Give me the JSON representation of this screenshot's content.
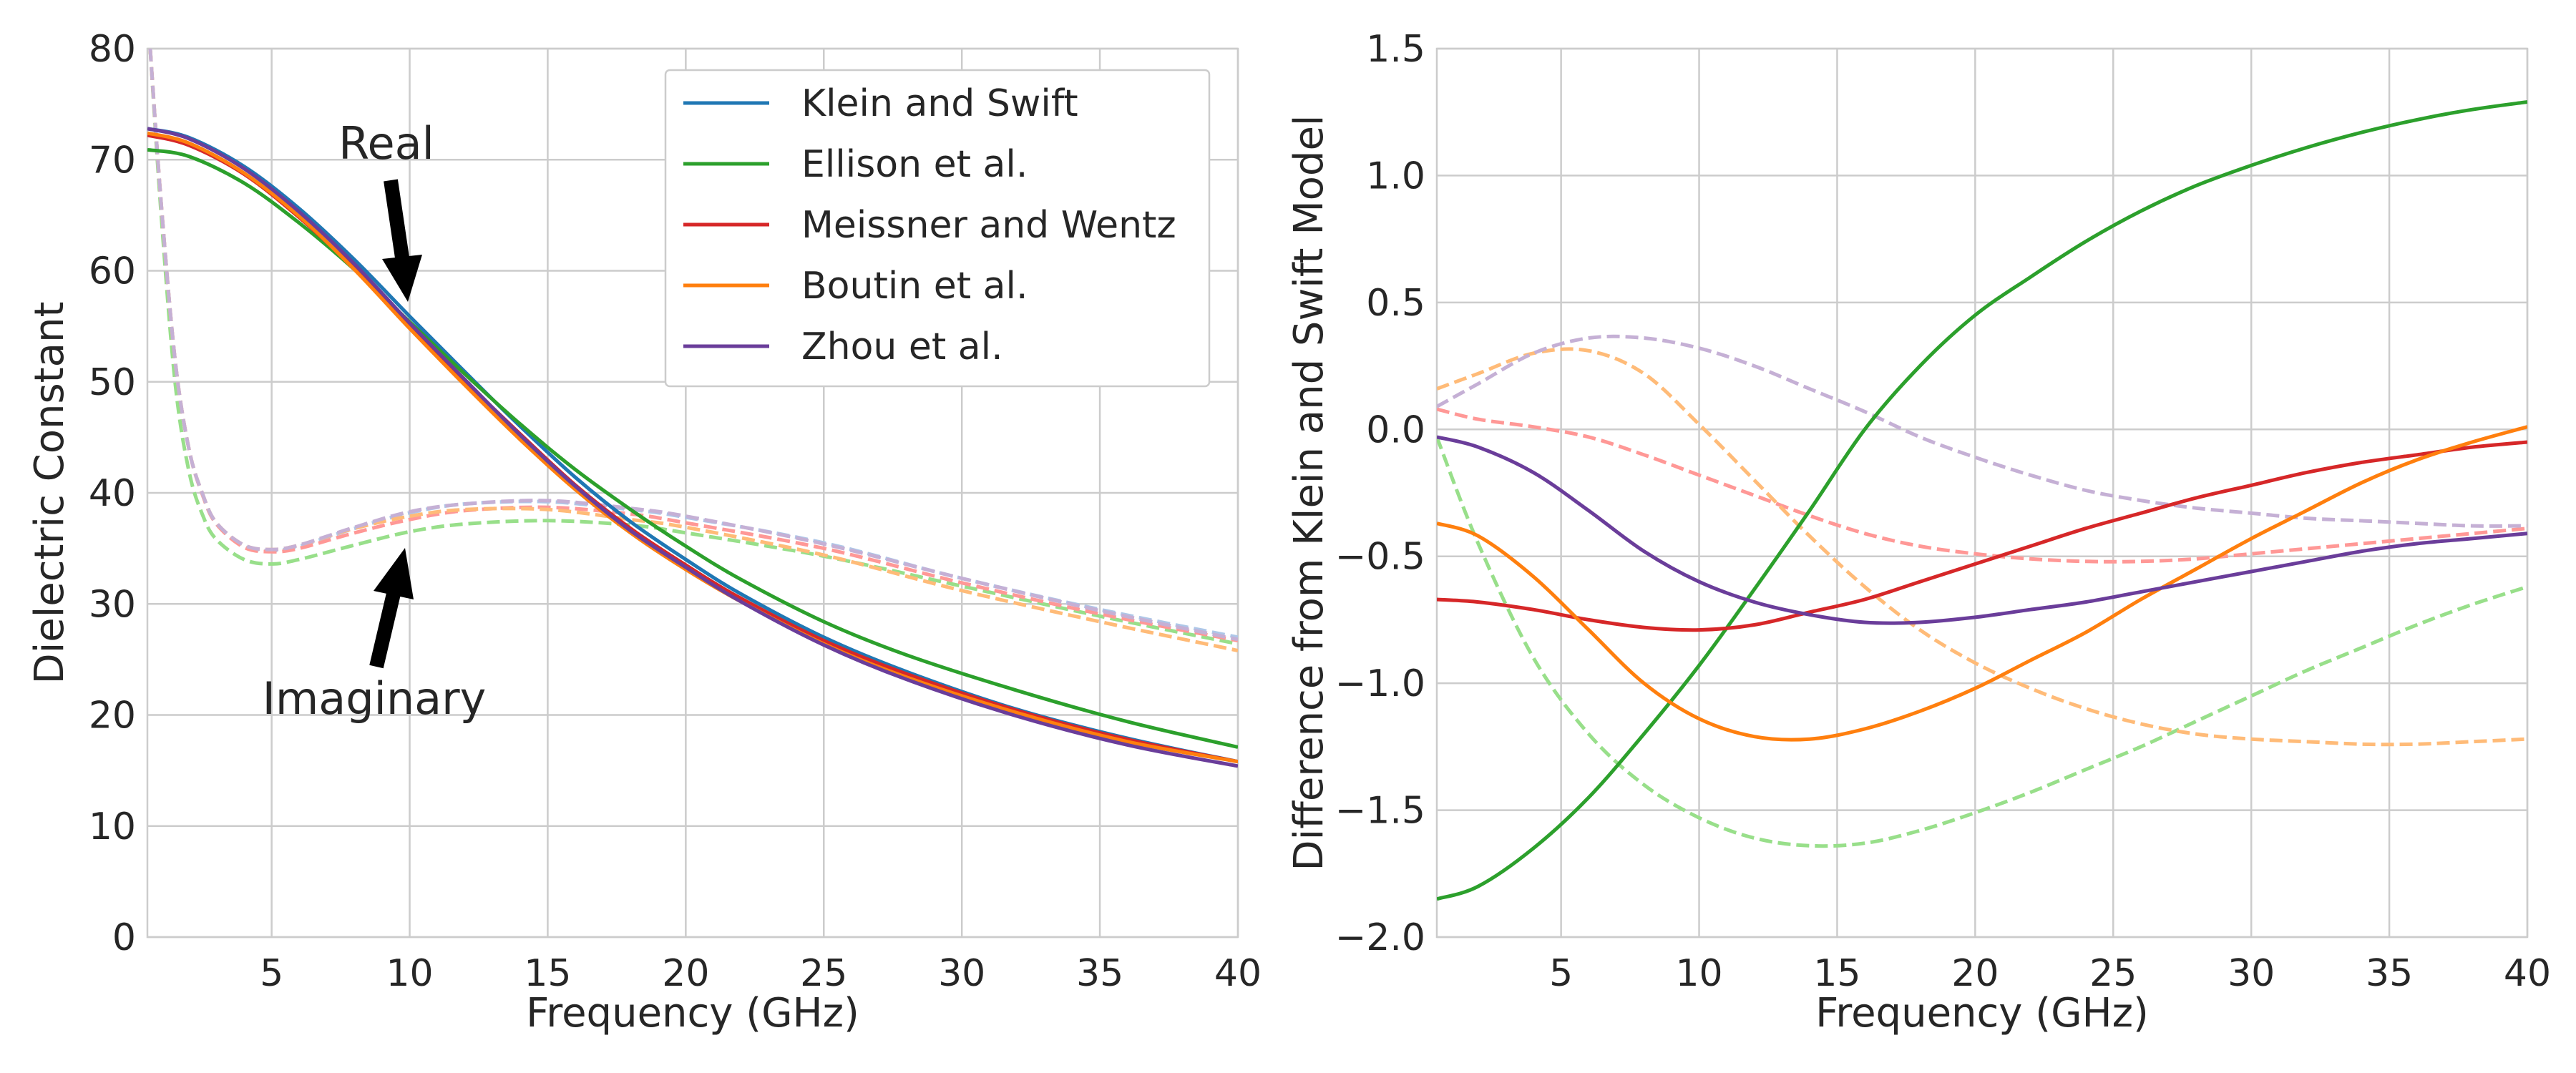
{
  "chart_data": [
    {
      "type": "line",
      "title": "",
      "xlabel": "Frequency (GHz)",
      "ylabel": "Dielectric Constant",
      "xlim": [
        0.5,
        40
      ],
      "ylim": [
        0,
        80
      ],
      "xticks": [
        5,
        10,
        15,
        20,
        25,
        30,
        35,
        40
      ],
      "yticks": [
        0,
        10,
        20,
        30,
        40,
        50,
        60,
        70,
        80
      ],
      "grid": true,
      "legend_position": "top-right",
      "legend": [
        {
          "label": "Klein and Swift",
          "color": "#1f77b4"
        },
        {
          "label": "Ellison et al.",
          "color": "#2ca02c"
        },
        {
          "label": "Meissner and Wentz",
          "color": "#d62728"
        },
        {
          "label": "Boutin et al.",
          "color": "#ff7f0e"
        },
        {
          "label": "Zhou et al.",
          "color": "#6a3d9a"
        }
      ],
      "annotations": [
        {
          "text": "Real",
          "points_to": [
            10,
            57
          ]
        },
        {
          "text": "Imaginary",
          "points_to": [
            10,
            35
          ]
        }
      ],
      "series": [
        {
          "name": "Klein and Swift",
          "component": "real",
          "style": "solid",
          "color": "#1f77b4",
          "x": [
            0.5,
            2,
            4,
            6,
            8,
            10,
            12,
            14,
            16,
            18,
            20,
            22,
            25,
            28,
            32,
            36,
            40
          ],
          "y": [
            72.8,
            72.0,
            69.4,
            65.6,
            61.0,
            55.9,
            50.9,
            46.0,
            41.4,
            37.4,
            34.0,
            30.9,
            27.0,
            23.9,
            20.5,
            17.9,
            15.8
          ]
        },
        {
          "name": "Ellison et al.",
          "component": "real",
          "style": "solid",
          "color": "#2ca02c",
          "x": [
            0.5,
            2,
            4,
            6,
            8,
            10,
            12,
            14,
            16,
            18,
            20,
            22,
            25,
            28,
            32,
            36,
            40
          ],
          "y": [
            70.9,
            70.3,
            67.9,
            64.3,
            60.1,
            55.4,
            50.7,
            46.2,
            42.1,
            38.5,
            35.2,
            32.2,
            28.4,
            25.4,
            22.2,
            19.4,
            17.1
          ]
        },
        {
          "name": "Meissner and Wentz",
          "component": "real",
          "style": "solid",
          "color": "#d62728",
          "x": [
            0.5,
            2,
            4,
            6,
            8,
            10,
            12,
            14,
            16,
            18,
            20,
            22,
            25,
            28,
            32,
            36,
            40
          ],
          "y": [
            72.2,
            71.3,
            68.7,
            64.8,
            60.2,
            55.1,
            50.1,
            45.3,
            40.7,
            36.8,
            33.5,
            30.5,
            26.7,
            23.7,
            20.4,
            17.8,
            15.8
          ]
        },
        {
          "name": "Boutin et al.",
          "component": "real",
          "style": "solid",
          "color": "#ff7f0e",
          "x": [
            0.5,
            2,
            4,
            6,
            8,
            10,
            12,
            14,
            16,
            18,
            20,
            22,
            25,
            28,
            32,
            36,
            40
          ],
          "y": [
            72.4,
            71.5,
            68.8,
            64.9,
            60.1,
            54.8,
            49.7,
            44.8,
            40.3,
            36.4,
            33.1,
            30.2,
            26.4,
            23.4,
            20.2,
            17.6,
            15.8
          ]
        },
        {
          "name": "Zhou et al.",
          "component": "real",
          "style": "solid",
          "color": "#6a3d9a",
          "x": [
            0.5,
            2,
            4,
            6,
            8,
            10,
            12,
            14,
            16,
            18,
            20,
            22,
            25,
            28,
            32,
            36,
            40
          ],
          "y": [
            72.8,
            71.9,
            69.2,
            65.3,
            60.6,
            55.3,
            50.2,
            45.2,
            40.6,
            36.6,
            33.3,
            30.2,
            26.3,
            23.2,
            19.9,
            17.3,
            15.4
          ]
        },
        {
          "name": "Klein and Swift",
          "component": "imaginary",
          "style": "dashed",
          "color": "#aec7e8",
          "x": [
            0.6,
            1,
            1.5,
            2,
            2.5,
            3,
            4,
            5,
            6,
            8,
            10,
            12,
            15,
            18,
            20,
            25,
            30,
            35,
            40
          ],
          "y": [
            80,
            66,
            52,
            44,
            39.8,
            37.2,
            35.2,
            34.8,
            35.2,
            36.8,
            38.2,
            39.0,
            39.2,
            38.5,
            37.8,
            35.5,
            32.3,
            29.5,
            27.0
          ]
        },
        {
          "name": "Ellison et al.",
          "component": "imaginary",
          "style": "dashed",
          "color": "#98df8a",
          "x": [
            0.6,
            1,
            1.5,
            2,
            2.5,
            3,
            4,
            5,
            6,
            8,
            10,
            12,
            15,
            18,
            20,
            25,
            30,
            35,
            40
          ],
          "y": [
            80,
            65,
            50,
            42,
            38.0,
            35.8,
            34.0,
            33.6,
            34.0,
            35.3,
            36.5,
            37.2,
            37.5,
            37.1,
            36.4,
            34.3,
            31.6,
            28.9,
            26.4
          ]
        },
        {
          "name": "Meissner and Wentz",
          "component": "imaginary",
          "style": "dashed",
          "color": "#ff9896",
          "x": [
            0.6,
            1,
            1.5,
            2,
            2.5,
            3,
            4,
            5,
            6,
            8,
            10,
            12,
            15,
            18,
            20,
            25,
            30,
            35,
            40
          ],
          "y": [
            80,
            66,
            52,
            44,
            39.8,
            37.2,
            35.1,
            34.7,
            35.0,
            36.4,
            37.6,
            38.4,
            38.7,
            38.1,
            37.3,
            35.0,
            31.9,
            29.1,
            26.7
          ]
        },
        {
          "name": "Boutin et al.",
          "component": "imaginary",
          "style": "dashed",
          "color": "#ffbb78",
          "x": [
            0.6,
            1,
            1.5,
            2,
            2.5,
            3,
            4,
            5,
            6,
            8,
            10,
            12,
            15,
            18,
            20,
            25,
            30,
            35,
            40
          ],
          "y": [
            80,
            66,
            52,
            44,
            39.9,
            37.3,
            35.3,
            34.9,
            35.3,
            36.8,
            37.9,
            38.5,
            38.5,
            37.6,
            36.9,
            34.4,
            31.2,
            28.4,
            25.8
          ]
        },
        {
          "name": "Zhou et al.",
          "component": "imaginary",
          "style": "dashed",
          "color": "#c5b0d5",
          "x": [
            0.6,
            1,
            1.5,
            2,
            2.5,
            3,
            4,
            5,
            6,
            8,
            10,
            12,
            15,
            18,
            20,
            25,
            30,
            35,
            40
          ],
          "y": [
            80,
            66,
            52,
            44,
            39.9,
            37.3,
            35.3,
            34.9,
            35.3,
            36.9,
            38.3,
            39.0,
            39.3,
            38.6,
            37.9,
            35.4,
            32.3,
            29.4,
            26.8
          ]
        }
      ]
    },
    {
      "type": "line",
      "title": "",
      "xlabel": "Frequency (GHz)",
      "ylabel": "Difference from Klein and Swift Model",
      "xlim": [
        0.5,
        40
      ],
      "ylim": [
        -2.0,
        1.5
      ],
      "xticks": [
        5,
        10,
        15,
        20,
        25,
        30,
        35,
        40
      ],
      "yticks": [
        -2.0,
        -1.5,
        -1.0,
        -0.5,
        0.0,
        0.5,
        1.0,
        1.5
      ],
      "ytick_labels": [
        "−2.0",
        "−1.5",
        "−1.0",
        "−0.5",
        "0.0",
        "0.5",
        "1.0",
        "1.5"
      ],
      "grid": true,
      "series": [
        {
          "name": "Ellison et al.",
          "component": "real",
          "style": "solid",
          "color": "#2ca02c",
          "x": [
            0.5,
            2,
            4,
            6,
            8,
            10,
            12,
            14,
            16,
            18,
            20,
            22,
            24,
            26,
            28,
            30,
            32,
            34,
            36,
            38,
            40
          ],
          "y": [
            -1.85,
            -1.8,
            -1.65,
            -1.45,
            -1.2,
            -0.93,
            -0.63,
            -0.32,
            0.0,
            0.25,
            0.45,
            0.6,
            0.74,
            0.86,
            0.96,
            1.04,
            1.11,
            1.17,
            1.22,
            1.26,
            1.29
          ]
        },
        {
          "name": "Meissner and Wentz",
          "component": "real",
          "style": "solid",
          "color": "#d62728",
          "x": [
            0.5,
            2,
            4,
            6,
            8,
            10,
            12,
            14,
            16,
            18,
            20,
            22,
            24,
            26,
            28,
            30,
            32,
            34,
            36,
            38,
            40
          ],
          "y": [
            -0.67,
            -0.68,
            -0.71,
            -0.75,
            -0.78,
            -0.79,
            -0.77,
            -0.72,
            -0.67,
            -0.6,
            -0.53,
            -0.46,
            -0.39,
            -0.33,
            -0.27,
            -0.22,
            -0.17,
            -0.13,
            -0.1,
            -0.07,
            -0.05
          ]
        },
        {
          "name": "Boutin et al.",
          "component": "real",
          "style": "solid",
          "color": "#ff7f0e",
          "x": [
            0.5,
            2,
            4,
            6,
            8,
            10,
            12,
            14,
            16,
            18,
            20,
            22,
            24,
            26,
            28,
            30,
            32,
            34,
            36,
            38,
            40
          ],
          "y": [
            -0.37,
            -0.42,
            -0.58,
            -0.79,
            -1.0,
            -1.14,
            -1.21,
            -1.22,
            -1.18,
            -1.11,
            -1.02,
            -0.91,
            -0.8,
            -0.67,
            -0.55,
            -0.43,
            -0.32,
            -0.21,
            -0.12,
            -0.05,
            0.01
          ]
        },
        {
          "name": "Zhou et al.",
          "component": "real",
          "style": "solid",
          "color": "#6a3d9a",
          "x": [
            0.5,
            2,
            4,
            6,
            8,
            10,
            12,
            14,
            16,
            18,
            20,
            22,
            24,
            26,
            28,
            30,
            32,
            34,
            36,
            38,
            40
          ],
          "y": [
            -0.03,
            -0.07,
            -0.17,
            -0.32,
            -0.48,
            -0.6,
            -0.68,
            -0.73,
            -0.76,
            -0.76,
            -0.74,
            -0.71,
            -0.68,
            -0.64,
            -0.6,
            -0.56,
            -0.52,
            -0.48,
            -0.45,
            -0.43,
            -0.41
          ]
        },
        {
          "name": "Ellison et al.",
          "component": "imaginary",
          "style": "dashed",
          "color": "#98df8a",
          "x": [
            0.5,
            2,
            4,
            6,
            8,
            10,
            12,
            14,
            16,
            18,
            20,
            22,
            24,
            26,
            28,
            30,
            32,
            34,
            36,
            38,
            40
          ],
          "y": [
            -0.03,
            -0.45,
            -0.9,
            -1.2,
            -1.4,
            -1.53,
            -1.61,
            -1.64,
            -1.63,
            -1.58,
            -1.51,
            -1.43,
            -1.34,
            -1.25,
            -1.15,
            -1.05,
            -0.95,
            -0.86,
            -0.77,
            -0.69,
            -0.62
          ]
        },
        {
          "name": "Meissner and Wentz",
          "component": "imaginary",
          "style": "dashed",
          "color": "#ff9896",
          "x": [
            0.5,
            2,
            4,
            6,
            8,
            10,
            12,
            14,
            16,
            18,
            20,
            22,
            24,
            26,
            28,
            30,
            32,
            34,
            36,
            38,
            40
          ],
          "y": [
            0.08,
            0.04,
            0.01,
            -0.03,
            -0.1,
            -0.18,
            -0.26,
            -0.34,
            -0.41,
            -0.46,
            -0.49,
            -0.51,
            -0.52,
            -0.52,
            -0.51,
            -0.49,
            -0.47,
            -0.45,
            -0.43,
            -0.41,
            -0.39
          ]
        },
        {
          "name": "Boutin et al.",
          "component": "imaginary",
          "style": "dashed",
          "color": "#ffbb78",
          "x": [
            0.5,
            2,
            4,
            6,
            8,
            10,
            12,
            14,
            16,
            18,
            20,
            22,
            24,
            26,
            28,
            30,
            32,
            34,
            36,
            38,
            40
          ],
          "y": [
            0.16,
            0.22,
            0.3,
            0.31,
            0.22,
            0.02,
            -0.2,
            -0.42,
            -0.62,
            -0.79,
            -0.92,
            -1.02,
            -1.1,
            -1.16,
            -1.2,
            -1.22,
            -1.23,
            -1.24,
            -1.24,
            -1.23,
            -1.22
          ]
        },
        {
          "name": "Zhou et al.",
          "component": "imaginary",
          "style": "dashed",
          "color": "#c5b0d5",
          "x": [
            0.5,
            2,
            4,
            6,
            8,
            10,
            12,
            14,
            16,
            18,
            20,
            22,
            24,
            26,
            28,
            30,
            32,
            34,
            36,
            38,
            40
          ],
          "y": [
            0.09,
            0.18,
            0.3,
            0.36,
            0.36,
            0.32,
            0.25,
            0.16,
            0.07,
            -0.03,
            -0.11,
            -0.18,
            -0.24,
            -0.28,
            -0.31,
            -0.33,
            -0.35,
            -0.36,
            -0.37,
            -0.38,
            -0.38
          ]
        }
      ]
    }
  ]
}
